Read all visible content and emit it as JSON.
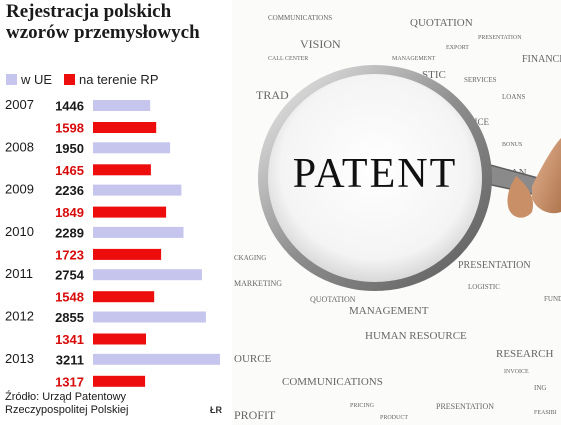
{
  "chart_data": {
    "type": "bar",
    "title": "Rejestracja polskich\nwzorów przemysłowych",
    "categories": [
      "2007",
      "2008",
      "2009",
      "2010",
      "2011",
      "2012",
      "2013"
    ],
    "series": [
      {
        "name": "w UE",
        "color": "#c5c5ee",
        "values": [
          1446,
          1950,
          2236,
          2289,
          2754,
          2855,
          3211
        ]
      },
      {
        "name": "na terenie RP",
        "color": "#ee0d0d",
        "values": [
          1598,
          1465,
          1849,
          1723,
          1548,
          1341,
          1317
        ]
      }
    ],
    "xlim": [
      0,
      3211
    ],
    "value_label_colors": [
      "#1a1a1a",
      "#d80b0b"
    ],
    "grid": false,
    "legend": "top-left",
    "source": "Źródło: Urząd Patentowy\nRzeczypospolitej Polskiej",
    "logo": "ŁR"
  },
  "photo": {
    "main_word": "PATENT",
    "words": [
      "VISION",
      "COMMUNICATIONS",
      "QUOTATION",
      "PRESENTATION",
      "EXPORT",
      "FINANCE",
      "CALL CENTER",
      "MANAGEMENT",
      "STIC",
      "SERVICES",
      "TRAD",
      "LOANS",
      "INVOICE",
      "BONUS",
      "LOAN",
      "CKAGING",
      "PRESENTATION",
      "MARKETING",
      "LOGISTIC",
      "QUOTATION",
      "MANAGEMENT",
      "HUMAN RESOURCE",
      "RESEARCH",
      "OURCE",
      "INVOICE",
      "COMMUNICATIONS",
      "PRICING",
      "PRESENTATION",
      "PROFIT",
      "PRODUCT",
      "FEASIBI",
      "ING",
      "FUND"
    ]
  }
}
